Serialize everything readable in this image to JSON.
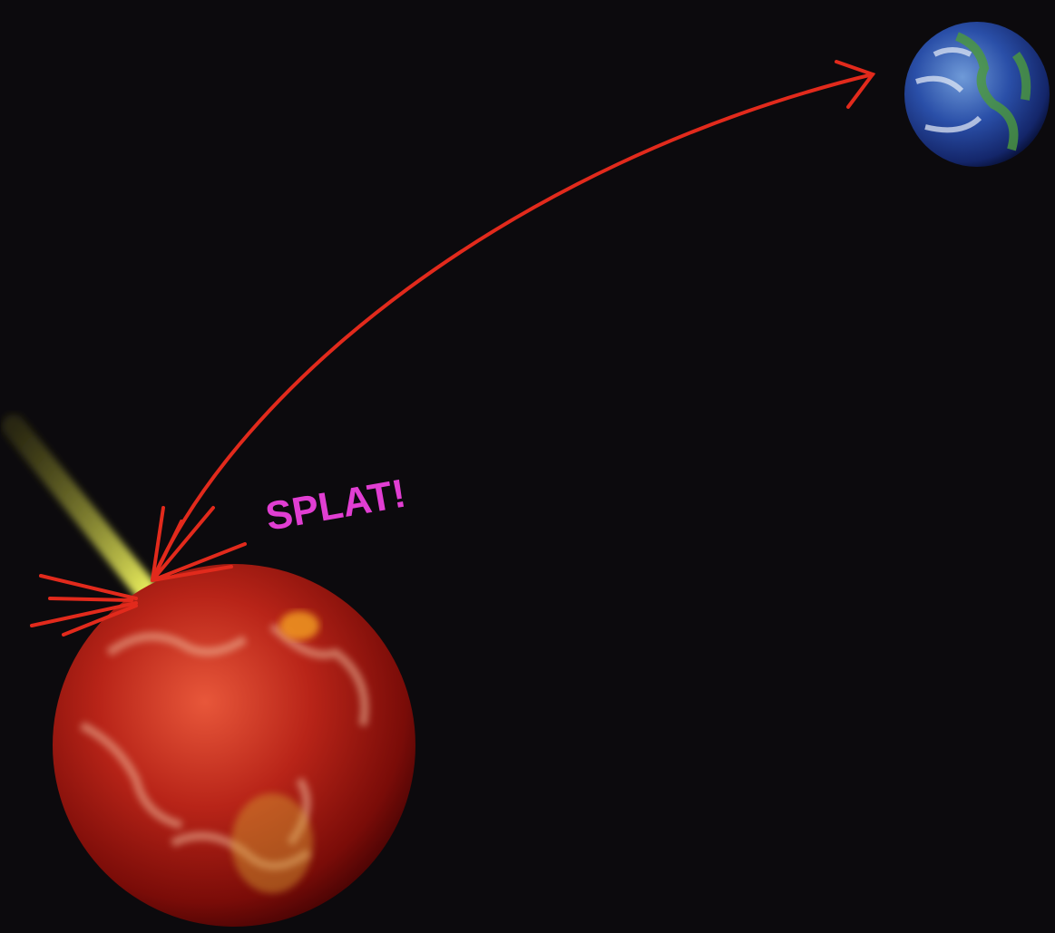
{
  "annotation": "SPLAT!"
}
